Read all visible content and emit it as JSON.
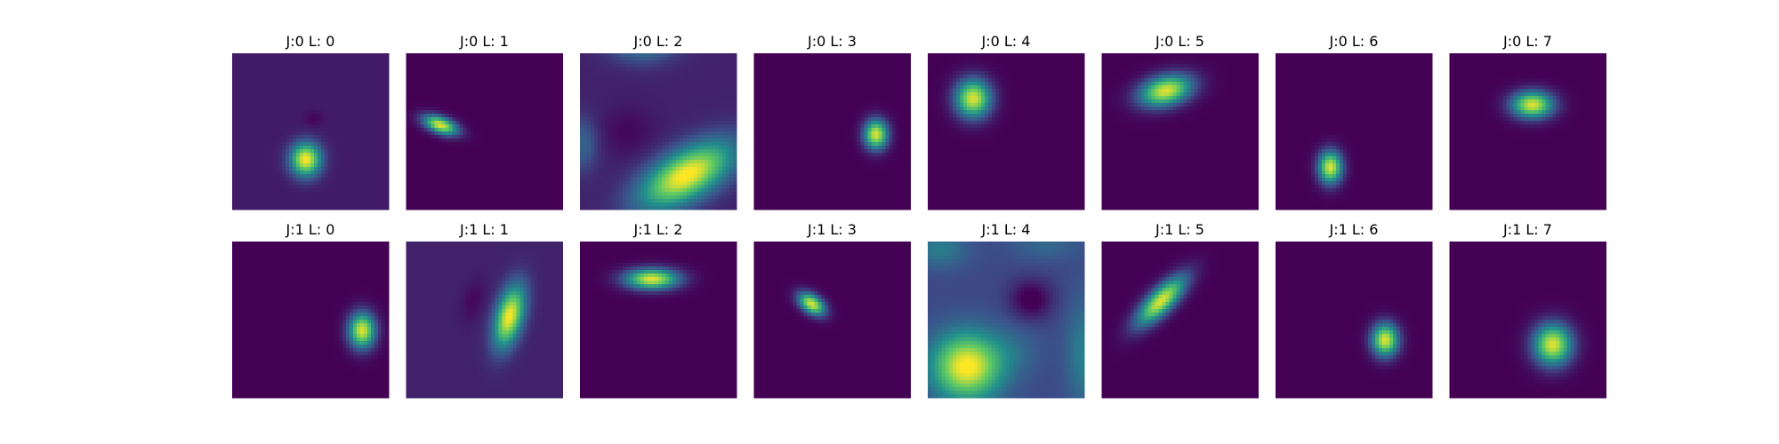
{
  "chart_data": {
    "type": "heatmap",
    "layout": {
      "rows": 2,
      "cols": 8
    },
    "colormap": "viridis",
    "colormap_stops": [
      "#440154",
      "#3b528b",
      "#21908d",
      "#5dc963",
      "#fde725"
    ],
    "panels": [
      {
        "title": "J:0 L: 0",
        "j": 0,
        "l": 0,
        "base": 0.08,
        "blobs": [
          {
            "cx": 0.47,
            "cy": 0.68,
            "rx": 0.1,
            "ry": 0.11,
            "angle": 0,
            "amp": 0.92
          },
          {
            "cx": 0.52,
            "cy": 0.42,
            "rx": 0.06,
            "ry": 0.05,
            "angle": 0,
            "amp": -0.07
          }
        ]
      },
      {
        "title": "J:0 L: 1",
        "j": 0,
        "l": 1,
        "base": 0.0,
        "blobs": [
          {
            "cx": 0.22,
            "cy": 0.46,
            "rx": 0.12,
            "ry": 0.055,
            "angle": 20,
            "amp": 0.95
          }
        ]
      },
      {
        "title": "J:0 L: 2",
        "j": 0,
        "l": 2,
        "base": 0.1,
        "blobs": [
          {
            "cx": 0.68,
            "cy": 0.78,
            "rx": 0.34,
            "ry": 0.16,
            "angle": -30,
            "amp": 0.92
          },
          {
            "cx": 0.4,
            "cy": -0.05,
            "rx": 0.22,
            "ry": 0.12,
            "angle": 0,
            "amp": 0.3
          },
          {
            "cx": 0.02,
            "cy": 0.58,
            "rx": 0.1,
            "ry": 0.18,
            "angle": 0,
            "amp": 0.22
          },
          {
            "cx": 0.3,
            "cy": 0.5,
            "rx": 0.18,
            "ry": 0.16,
            "angle": 0,
            "amp": -0.08
          }
        ]
      },
      {
        "title": "J:0 L: 3",
        "j": 0,
        "l": 3,
        "base": 0.0,
        "blobs": [
          {
            "cx": 0.78,
            "cy": 0.52,
            "rx": 0.08,
            "ry": 0.1,
            "angle": 0,
            "amp": 0.95
          }
        ]
      },
      {
        "title": "J:0 L: 4",
        "j": 0,
        "l": 4,
        "base": 0.0,
        "blobs": [
          {
            "cx": 0.29,
            "cy": 0.29,
            "rx": 0.12,
            "ry": 0.13,
            "angle": 0,
            "amp": 0.95
          }
        ]
      },
      {
        "title": "J:0 L: 5",
        "j": 0,
        "l": 5,
        "base": 0.0,
        "blobs": [
          {
            "cx": 0.41,
            "cy": 0.24,
            "rx": 0.18,
            "ry": 0.1,
            "angle": -15,
            "amp": 0.95
          }
        ]
      },
      {
        "title": "J:0 L: 6",
        "j": 0,
        "l": 6,
        "base": 0.0,
        "blobs": [
          {
            "cx": 0.35,
            "cy": 0.73,
            "rx": 0.08,
            "ry": 0.11,
            "angle": 0,
            "amp": 0.95
          }
        ]
      },
      {
        "title": "J:0 L: 7",
        "j": 0,
        "l": 7,
        "base": 0.0,
        "blobs": [
          {
            "cx": 0.53,
            "cy": 0.33,
            "rx": 0.14,
            "ry": 0.09,
            "angle": 0,
            "amp": 0.95
          }
        ]
      },
      {
        "title": "J:1 L: 0",
        "j": 1,
        "l": 0,
        "base": 0.0,
        "blobs": [
          {
            "cx": 0.83,
            "cy": 0.57,
            "rx": 0.09,
            "ry": 0.12,
            "angle": 0,
            "amp": 0.95
          }
        ]
      },
      {
        "title": "J:1 L: 1",
        "j": 1,
        "l": 1,
        "base": 0.1,
        "blobs": [
          {
            "cx": 0.66,
            "cy": 0.48,
            "rx": 0.09,
            "ry": 0.21,
            "angle": 15,
            "amp": 0.9
          },
          {
            "cx": 0.43,
            "cy": 0.38,
            "rx": 0.07,
            "ry": 0.14,
            "angle": 15,
            "amp": -0.08
          }
        ]
      },
      {
        "title": "J:1 L: 2",
        "j": 1,
        "l": 2,
        "base": 0.0,
        "blobs": [
          {
            "cx": 0.46,
            "cy": 0.24,
            "rx": 0.18,
            "ry": 0.07,
            "angle": 0,
            "amp": 0.95
          }
        ]
      },
      {
        "title": "J:1 L: 3",
        "j": 1,
        "l": 3,
        "base": 0.0,
        "blobs": [
          {
            "cx": 0.37,
            "cy": 0.4,
            "rx": 0.1,
            "ry": 0.06,
            "angle": 35,
            "amp": 0.95
          }
        ]
      },
      {
        "title": "J:1 L: 4",
        "j": 1,
        "l": 4,
        "base": 0.22,
        "blobs": [
          {
            "cx": 0.25,
            "cy": 0.8,
            "rx": 0.23,
            "ry": 0.22,
            "angle": 0,
            "amp": 0.8
          },
          {
            "cx": 0.66,
            "cy": 0.37,
            "rx": 0.14,
            "ry": 0.13,
            "angle": 0,
            "amp": -0.26
          },
          {
            "cx": 1.0,
            "cy": 0.72,
            "rx": 0.12,
            "ry": 0.35,
            "angle": 0,
            "amp": 0.22
          },
          {
            "cx": 0.08,
            "cy": 0.05,
            "rx": 0.18,
            "ry": 0.12,
            "angle": 0,
            "amp": 0.2
          },
          {
            "cx": 0.75,
            "cy": 0.02,
            "rx": 0.22,
            "ry": 0.1,
            "angle": 0,
            "amp": 0.12
          },
          {
            "cx": 0.55,
            "cy": 0.7,
            "rx": 0.18,
            "ry": 0.16,
            "angle": 0,
            "amp": 0.1
          }
        ]
      },
      {
        "title": "J:1 L: 5",
        "j": 1,
        "l": 5,
        "base": 0.0,
        "blobs": [
          {
            "cx": 0.38,
            "cy": 0.38,
            "rx": 0.22,
            "ry": 0.08,
            "angle": -45,
            "amp": 0.95
          }
        ]
      },
      {
        "title": "J:1 L: 6",
        "j": 1,
        "l": 6,
        "base": 0.0,
        "blobs": [
          {
            "cx": 0.7,
            "cy": 0.63,
            "rx": 0.09,
            "ry": 0.11,
            "angle": 0,
            "amp": 0.95
          }
        ]
      },
      {
        "title": "J:1 L: 7",
        "j": 1,
        "l": 7,
        "base": 0.0,
        "blobs": [
          {
            "cx": 0.66,
            "cy": 0.66,
            "rx": 0.13,
            "ry": 0.14,
            "angle": 0,
            "amp": 0.95
          }
        ]
      }
    ]
  }
}
